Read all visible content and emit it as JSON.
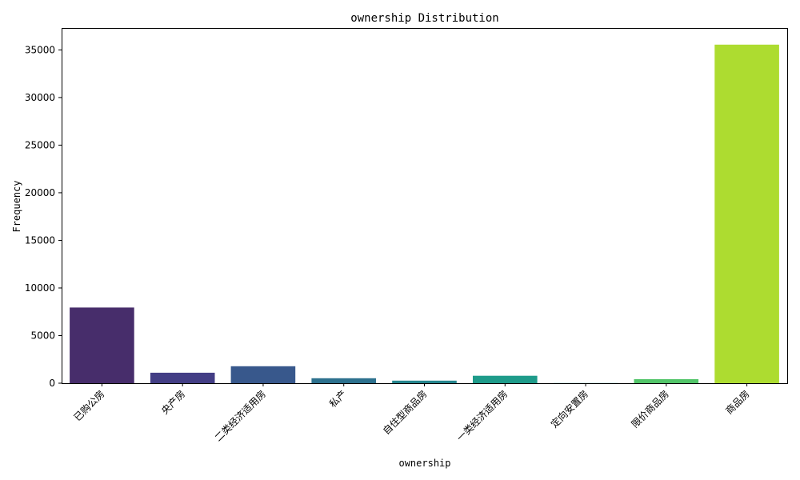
{
  "chart_data": {
    "type": "bar",
    "title": "ownership Distribution",
    "xlabel": "ownership",
    "ylabel": "Frequency",
    "categories": [
      "已购公房",
      "央产房",
      "二类经济适用房",
      "私产",
      "自住型商品房",
      "一类经济适用房",
      "定向安置房",
      "限价商品房",
      "商品房"
    ],
    "values": [
      7950,
      1100,
      1780,
      520,
      270,
      780,
      20,
      430,
      35550
    ],
    "ylim": [
      0,
      37300
    ],
    "yticks": [
      0,
      5000,
      10000,
      15000,
      20000,
      25000,
      30000,
      35000
    ],
    "colors": [
      "#472d6b",
      "#433e85",
      "#38588c",
      "#2d718e",
      "#25858e",
      "#1e9b8a",
      "#2ab07f",
      "#52c569",
      "#addc30"
    ],
    "grid": false,
    "legend": "none"
  }
}
